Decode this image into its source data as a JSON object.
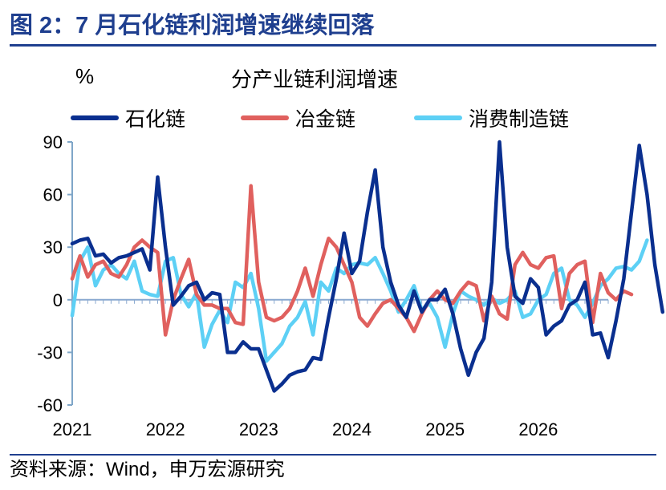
{
  "figure": {
    "title": "图 2：7 月石化链利润增速继续回落",
    "source": "资料来源：Wind，申万宏源研究"
  },
  "chart_data": {
    "type": "line",
    "title": "分产业链利润增速",
    "ylabel": "%",
    "xlabel": "",
    "ylim": [
      -60,
      90
    ],
    "yticks": [
      90,
      60,
      30,
      0,
      -30,
      -60
    ],
    "xticks": [
      "2021",
      "2022",
      "2023",
      "2024",
      "2025",
      "2026"
    ],
    "x_start": 2021,
    "points_per_year": 12,
    "grid": false,
    "legend_position": "top",
    "series": [
      {
        "name": "石化链",
        "color": "#0a2f8f",
        "values": [
          32,
          34,
          35,
          25,
          26,
          21,
          24,
          25,
          27,
          29,
          17,
          70,
          30,
          -3,
          2,
          8,
          10,
          0,
          4,
          3,
          -30,
          -30,
          -24,
          -28,
          -28,
          -40,
          -52,
          -48,
          -43,
          -41,
          -40,
          -33,
          -34,
          -10,
          12,
          38,
          15,
          22,
          50,
          74,
          30,
          10,
          -3,
          -10,
          5,
          -7,
          0,
          0,
          6,
          -8,
          -28,
          -43,
          -30,
          -22,
          10,
          90,
          30,
          2,
          -2,
          12,
          7,
          -20,
          -15,
          -12,
          -3,
          0,
          10,
          -20,
          -19,
          -33,
          -12,
          12,
          50,
          88,
          60,
          20,
          -7
        ]
      },
      {
        "name": "冶金链",
        "color": "#e0605e",
        "values": [
          12,
          25,
          13,
          20,
          22,
          15,
          13,
          20,
          30,
          34,
          30,
          27,
          -20,
          0,
          12,
          23,
          3,
          -3,
          -3,
          -5,
          -5,
          -13,
          -14,
          65,
          10,
          -10,
          -12,
          -10,
          -5,
          5,
          18,
          2,
          20,
          35,
          30,
          20,
          10,
          -10,
          -15,
          -8,
          -2,
          0,
          -5,
          -10,
          -18,
          -8,
          0,
          5,
          0,
          -2,
          5,
          10,
          8,
          -12,
          2,
          -8,
          -11,
          20,
          27,
          20,
          18,
          24,
          25,
          -5,
          15,
          20,
          22,
          -13,
          15,
          4,
          0,
          5,
          3
        ]
      },
      {
        "name": "消费制造链",
        "color": "#5dd0f5",
        "values": [
          -9,
          22,
          30,
          8,
          17,
          20,
          15,
          12,
          22,
          5,
          3,
          2,
          22,
          24,
          3,
          -4,
          4,
          -27,
          -14,
          -6,
          -13,
          10,
          7,
          15,
          -5,
          -35,
          -30,
          -25,
          -15,
          -10,
          -1,
          -20,
          10,
          5,
          18,
          15,
          20,
          21,
          20,
          24,
          15,
          5,
          -7,
          0,
          8,
          -6,
          -2,
          -10,
          -27,
          -8,
          5,
          2,
          0,
          -3,
          1,
          -2,
          0,
          5,
          -10,
          -8,
          0,
          3,
          15,
          18,
          0,
          -3,
          -10,
          -2,
          8,
          12,
          18,
          19,
          17,
          22,
          34
        ]
      }
    ]
  }
}
